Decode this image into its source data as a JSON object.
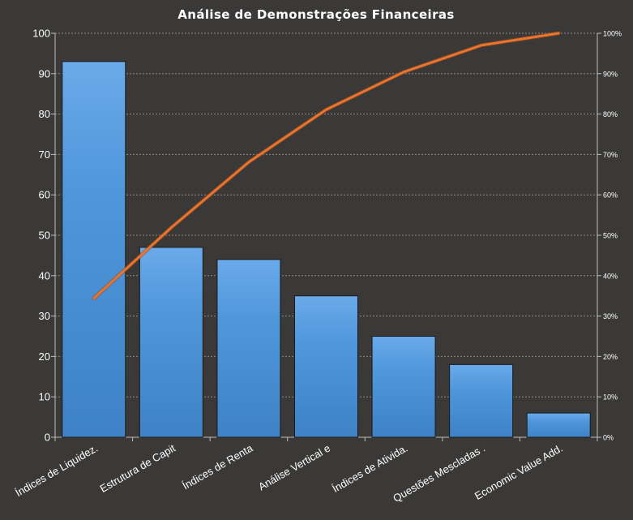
{
  "chart_data": {
    "type": "bar",
    "title": "Análise de Demonstrações Financeiras",
    "categories": [
      "Índices de Liquidez.",
      "Estrutura de Capit",
      "Índices de Renta",
      "Análise Vertical e",
      "Índices de Ativida.",
      "Questões Mescladas .",
      "Economic Value Add."
    ],
    "series": [
      {
        "type": "bar",
        "values": [
          93,
          47,
          44,
          35,
          25,
          18,
          6
        ],
        "color": "#4f93d6"
      },
      {
        "type": "line",
        "axis": "right",
        "values": [
          34.4,
          51.9,
          68.1,
          81.1,
          90.4,
          97.0,
          100.0
        ],
        "color": "#e8742e"
      }
    ],
    "ylim": [
      0,
      100
    ],
    "yticks": [
      "0",
      "10",
      "20",
      "30",
      "40",
      "50",
      "60",
      "70",
      "80",
      "90",
      "100"
    ],
    "y2lim": [
      0,
      100
    ],
    "y2ticks": [
      "0%",
      "10%",
      "20%",
      "30%",
      "40%",
      "50%",
      "60%",
      "70%",
      "80%",
      "90%",
      "100%"
    ],
    "grid": true,
    "xlabel": "",
    "ylabel": ""
  }
}
